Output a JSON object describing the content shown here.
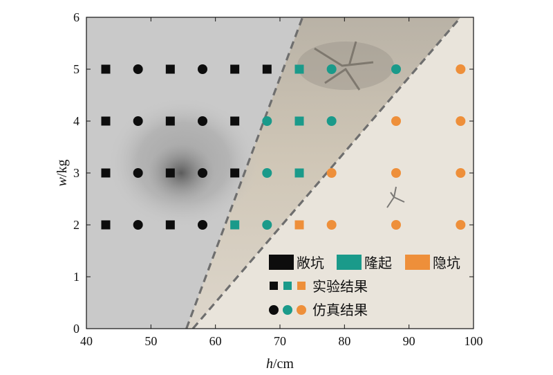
{
  "chart_data": {
    "type": "scatter",
    "xlabel_italic": "h",
    "xlabel_unit": "/cm",
    "ylabel_italic": "w",
    "ylabel_unit": "/kg",
    "xlim": [
      40,
      100
    ],
    "ylim": [
      0,
      6
    ],
    "xticks": [
      "40",
      "50",
      "60",
      "70",
      "80",
      "90",
      "100"
    ],
    "yticks": [
      "0",
      "1",
      "2",
      "3",
      "4",
      "5",
      "6"
    ],
    "grid": false,
    "background": "photograph of crater, bulge and hidden-crater test results behind three regions",
    "boundaries": [
      {
        "from": [
          55.5,
          0
        ],
        "to": [
          73.5,
          6
        ]
      },
      {
        "from": [
          56.5,
          0
        ],
        "to": [
          98.0,
          6
        ]
      }
    ],
    "colors": {
      "open_crater": "#0d0d0d",
      "bulge": "#1a9a8a",
      "hidden_crater": "#ee8f3a"
    },
    "series": [
      {
        "name": "实验结果",
        "marker": "square",
        "points": [
          {
            "x": 43,
            "y": 5,
            "class": "open_crater"
          },
          {
            "x": 53,
            "y": 5,
            "class": "open_crater"
          },
          {
            "x": 63,
            "y": 5,
            "class": "open_crater"
          },
          {
            "x": 68,
            "y": 5,
            "class": "open_crater"
          },
          {
            "x": 73,
            "y": 5,
            "class": "bulge"
          },
          {
            "x": 43,
            "y": 4,
            "class": "open_crater"
          },
          {
            "x": 53,
            "y": 4,
            "class": "open_crater"
          },
          {
            "x": 63,
            "y": 4,
            "class": "open_crater"
          },
          {
            "x": 73,
            "y": 4,
            "class": "bulge"
          },
          {
            "x": 43,
            "y": 3,
            "class": "open_crater"
          },
          {
            "x": 53,
            "y": 3,
            "class": "open_crater"
          },
          {
            "x": 63,
            "y": 3,
            "class": "open_crater"
          },
          {
            "x": 73,
            "y": 3,
            "class": "bulge"
          },
          {
            "x": 43,
            "y": 2,
            "class": "open_crater"
          },
          {
            "x": 53,
            "y": 2,
            "class": "open_crater"
          },
          {
            "x": 63,
            "y": 2,
            "class": "bulge"
          },
          {
            "x": 73,
            "y": 2,
            "class": "hidden_crater"
          }
        ]
      },
      {
        "name": "仿真结果",
        "marker": "circle",
        "points": [
          {
            "x": 48,
            "y": 5,
            "class": "open_crater"
          },
          {
            "x": 58,
            "y": 5,
            "class": "open_crater"
          },
          {
            "x": 78,
            "y": 5,
            "class": "bulge"
          },
          {
            "x": 88,
            "y": 5,
            "class": "bulge"
          },
          {
            "x": 98,
            "y": 5,
            "class": "hidden_crater"
          },
          {
            "x": 48,
            "y": 4,
            "class": "open_crater"
          },
          {
            "x": 58,
            "y": 4,
            "class": "open_crater"
          },
          {
            "x": 68,
            "y": 4,
            "class": "bulge"
          },
          {
            "x": 78,
            "y": 4,
            "class": "bulge"
          },
          {
            "x": 88,
            "y": 4,
            "class": "hidden_crater"
          },
          {
            "x": 98,
            "y": 4,
            "class": "hidden_crater"
          },
          {
            "x": 48,
            "y": 3,
            "class": "open_crater"
          },
          {
            "x": 58,
            "y": 3,
            "class": "open_crater"
          },
          {
            "x": 68,
            "y": 3,
            "class": "bulge"
          },
          {
            "x": 78,
            "y": 3,
            "class": "hidden_crater"
          },
          {
            "x": 88,
            "y": 3,
            "class": "hidden_crater"
          },
          {
            "x": 98,
            "y": 3,
            "class": "hidden_crater"
          },
          {
            "x": 48,
            "y": 2,
            "class": "open_crater"
          },
          {
            "x": 58,
            "y": 2,
            "class": "open_crater"
          },
          {
            "x": 68,
            "y": 2,
            "class": "bulge"
          },
          {
            "x": 78,
            "y": 2,
            "class": "hidden_crater"
          },
          {
            "x": 88,
            "y": 2,
            "class": "hidden_crater"
          },
          {
            "x": 98,
            "y": 2,
            "class": "hidden_crater"
          }
        ]
      }
    ],
    "legend": {
      "placement": "bottom-right",
      "classes": [
        {
          "key": "open_crater",
          "label": "敞坑"
        },
        {
          "key": "bulge",
          "label": "隆起"
        },
        {
          "key": "hidden_crater",
          "label": "隐坑"
        }
      ],
      "series_labels": {
        "square": "实验结果",
        "circle": "仿真结果"
      }
    }
  }
}
